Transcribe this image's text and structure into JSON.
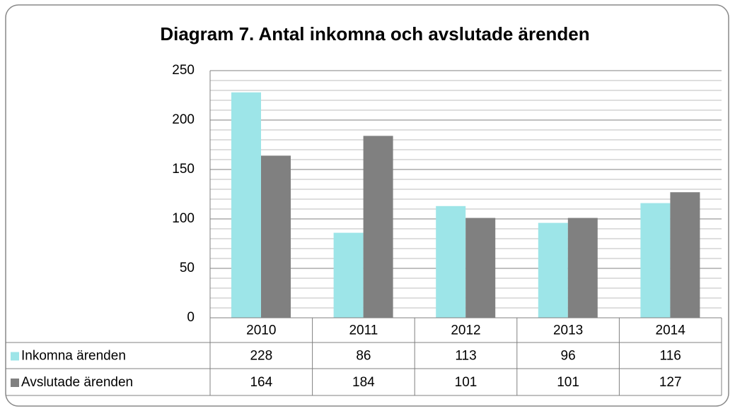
{
  "chart_data": {
    "type": "bar",
    "title": "Diagram 7. Antal inkomna och avslutade ärenden",
    "categories": [
      "2010",
      "2011",
      "2012",
      "2013",
      "2014"
    ],
    "series": [
      {
        "name": "Inkomna ärenden",
        "color": "#9de5e8",
        "values": [
          228,
          86,
          113,
          96,
          116
        ]
      },
      {
        "name": "Avslutade ärenden",
        "color": "#808080",
        "values": [
          164,
          184,
          101,
          101,
          127
        ]
      }
    ],
    "ylim": [
      0,
      250
    ],
    "yticks": [
      0,
      50,
      100,
      150,
      200,
      250
    ],
    "minor_yticks": [
      10,
      20,
      30,
      40,
      60,
      70,
      80,
      90,
      110,
      120,
      130,
      140,
      160,
      170,
      180,
      190,
      210,
      220,
      230,
      240
    ],
    "grid": true,
    "data_table": true
  }
}
